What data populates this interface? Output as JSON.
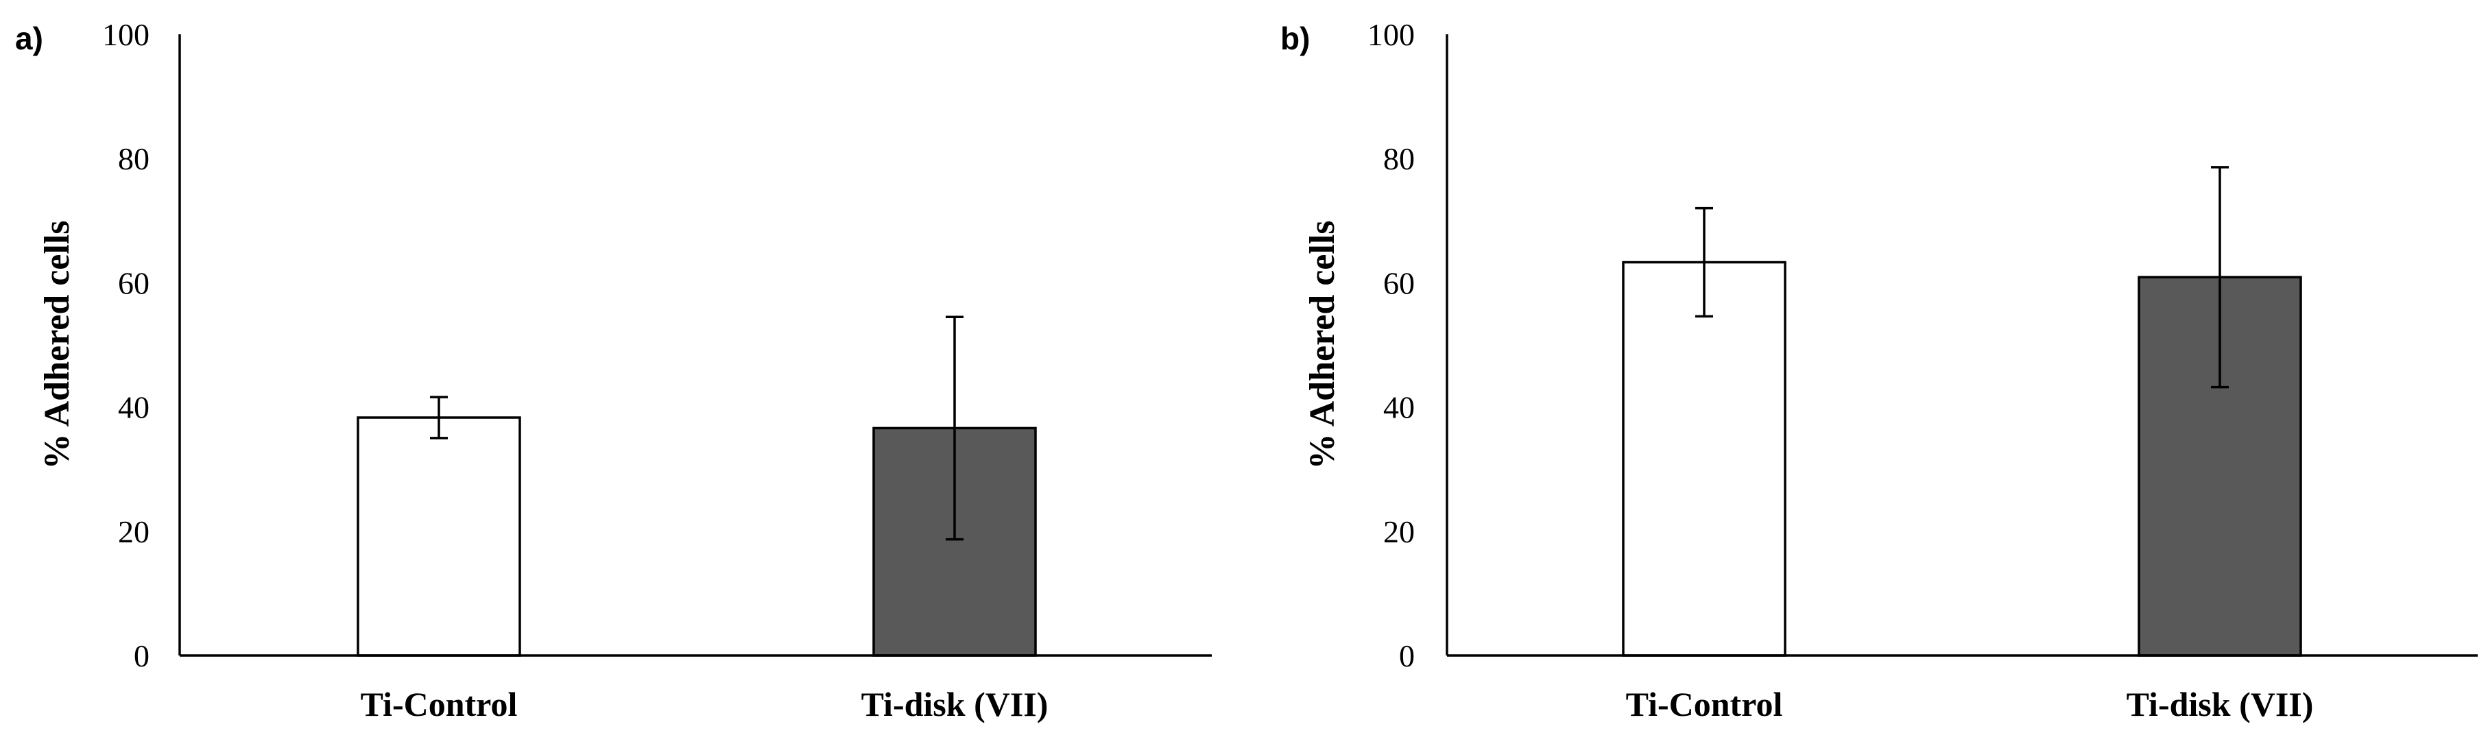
{
  "chart_data": [
    {
      "panel": "a)",
      "type": "bar",
      "title": "",
      "xlabel": "",
      "ylabel": "% Adhered cells",
      "ylim": [
        0,
        100
      ],
      "yticks": [
        0,
        20,
        40,
        60,
        80,
        100
      ],
      "grid": false,
      "categories": [
        "Ti-Control",
        "Ti-disk (VII)"
      ],
      "values": [
        38.3,
        36.6
      ],
      "errors": [
        3.3,
        17.9
      ],
      "colors": [
        "#ffffff",
        "#595959"
      ]
    },
    {
      "panel": "b)",
      "type": "bar",
      "title": "",
      "xlabel": "",
      "ylabel": "% Adhered cells",
      "ylim": [
        0,
        100
      ],
      "yticks": [
        0,
        20,
        40,
        60,
        80,
        100
      ],
      "grid": false,
      "categories": [
        "Ti-Control",
        "Ti-disk (VII)"
      ],
      "values": [
        63.3,
        60.9
      ],
      "errors": [
        8.7,
        17.7
      ],
      "colors": [
        "#ffffff",
        "#595959"
      ]
    }
  ]
}
